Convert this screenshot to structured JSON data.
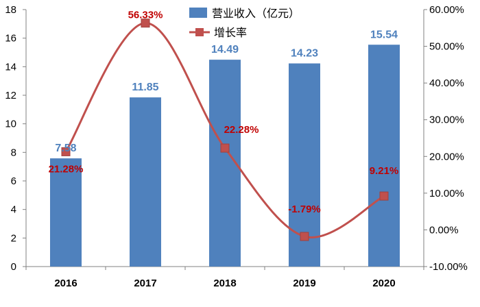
{
  "chart_data": {
    "type": "bar",
    "categories": [
      "2016",
      "2017",
      "2018",
      "2019",
      "2020"
    ],
    "series": [
      {
        "name": "营业收入（亿元）",
        "type": "bar",
        "axis": "left",
        "values": [
          7.58,
          11.85,
          14.49,
          14.23,
          15.54
        ],
        "labels": [
          "7.58",
          "11.85",
          "14.49",
          "14.23",
          "15.54"
        ],
        "color": "#4F81BD",
        "label_color": "#4F81BD"
      },
      {
        "name": "增长率",
        "type": "line",
        "axis": "right",
        "values": [
          21.28,
          56.33,
          22.28,
          -1.79,
          9.21
        ],
        "labels": [
          "21.28%",
          "56.33%",
          "22.28%",
          "-1.79%",
          "9.21%"
        ],
        "color": "#C0504D",
        "label_color": "#C00000",
        "smooth": true,
        "marker": "square"
      }
    ],
    "y_left": {
      "min": 0,
      "max": 18,
      "ticks": [
        "0",
        "2",
        "4",
        "6",
        "8",
        "10",
        "12",
        "14",
        "16",
        "18"
      ]
    },
    "y_right": {
      "min": -10,
      "max": 60,
      "ticks": [
        "-10.00%",
        "0.00%",
        "10.00%",
        "20.00%",
        "30.00%",
        "40.00%",
        "50.00%",
        "60.00%"
      ]
    },
    "grid": false,
    "legend": "top-center"
  }
}
